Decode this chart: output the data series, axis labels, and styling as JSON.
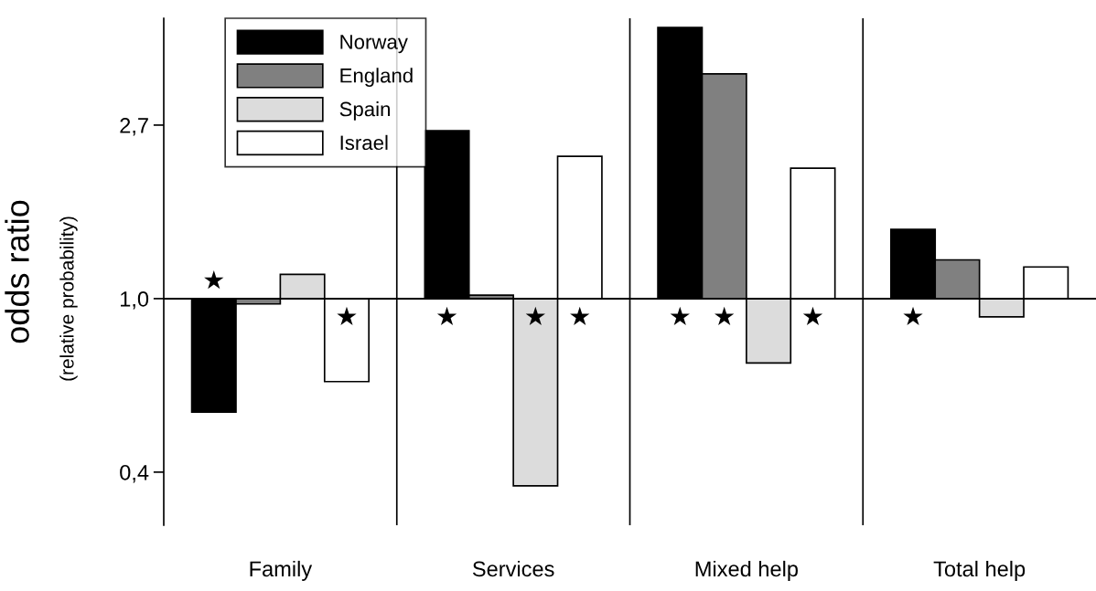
{
  "chart_data": {
    "type": "bar",
    "ylabel": "odds ratio",
    "annotations": [
      "(relative probability)"
    ],
    "categories": [
      "Family",
      "Services",
      "Mixed help",
      "Total help"
    ],
    "series": [
      {
        "name": "Norway",
        "color": "#000000",
        "base": [
          1,
          1,
          1,
          1
        ],
        "values": [
          -0.48,
          1.63,
          3.77,
          0.49
        ]
      },
      {
        "name": "England",
        "color": "#808080",
        "base": [
          1,
          1,
          1,
          1
        ],
        "values": [
          -0.03,
          0.02,
          2.65,
          0.25
        ]
      },
      {
        "name": "Spain",
        "color": "#dcdcdc",
        "base": [
          1,
          1,
          1,
          1
        ],
        "values": [
          0.15,
          -0.66,
          -0.31,
          -0.1
        ]
      },
      {
        "name": "Israel",
        "color": "#ffffff",
        "base": [
          1,
          1,
          1,
          1
        ],
        "values": [
          -0.38,
          1.27,
          1.12,
          0.2
        ]
      },
      {
        "type": "scatter",
        "marker": "star",
        "color": "#000000",
        "values": [
          1.11,
          0.9,
          0.9,
          0.9
        ]
      },
      {
        "type": "scatter",
        "marker": "star",
        "color": "#000000",
        "values": [
          null,
          null,
          0.9,
          null
        ]
      },
      {
        "type": "scatter",
        "marker": "star",
        "color": "#000000",
        "values": [
          null,
          0.9,
          null,
          null
        ]
      },
      {
        "type": "scatter",
        "marker": "star",
        "color": "#000000",
        "values": [
          0.9,
          0.9,
          0.9,
          null
        ]
      }
    ],
    "log": true,
    "ylim": [
      0.271,
      5.03
    ],
    "yticks": [
      {
        "value": 0.368,
        "label": "0,4"
      },
      {
        "value": 1,
        "label": "1,0"
      },
      {
        "value": 2.718,
        "label": "2,7"
      }
    ],
    "ref_lines": [
      {
        "axis": "y",
        "value": 1,
        "color": "#000000"
      }
    ],
    "grid": false,
    "legend": "top left"
  }
}
